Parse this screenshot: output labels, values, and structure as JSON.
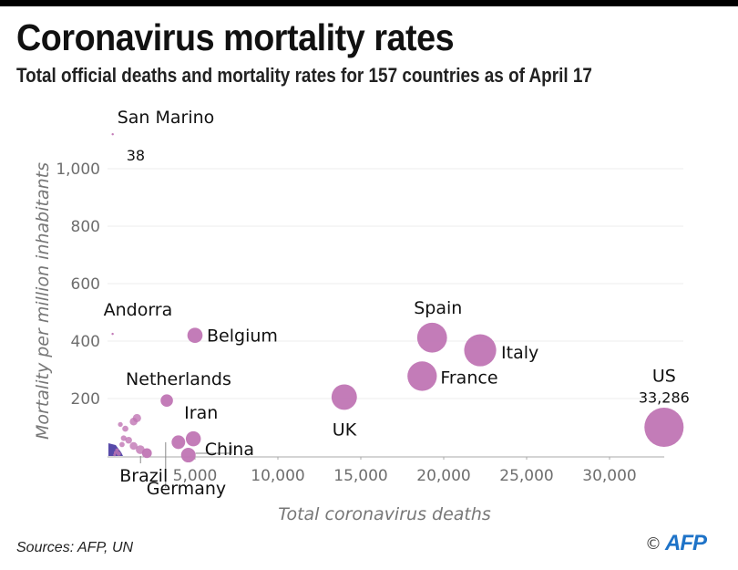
{
  "header": {
    "title": "Coronavirus mortality rates",
    "subtitle": "Total official deaths and mortality rates for 157 countries as of April 17"
  },
  "footer": {
    "source": "Sources: AFP, UN",
    "copyright_symbol": "©",
    "logo_text": "AFP",
    "logo_color": "#1e73c8"
  },
  "chart_data": {
    "type": "scatter",
    "title": "Coronavirus mortality rates",
    "subtitle": "Total official deaths and mortality rates for 157 countries as of April 17",
    "xlabel": "Total coronavirus deaths",
    "ylabel": "Mortality per million inhabitants",
    "xlim": [
      0,
      34000
    ],
    "ylim": [
      0,
      1150
    ],
    "x_ticks": [
      5000,
      10000,
      15000,
      20000,
      25000,
      30000
    ],
    "x_tick_labels": [
      "5,000",
      "10,000",
      "15,000",
      "20,000",
      "25,000",
      "30,000"
    ],
    "y_ticks": [
      200,
      400,
      600,
      800,
      1000
    ],
    "y_tick_labels": [
      "200",
      "400",
      "600",
      "800",
      "1,000"
    ],
    "grid": "horizontal",
    "bubble_color": "#c075b4",
    "low_color": "#3a2a9a",
    "labeled_points": [
      {
        "name": "San Marino",
        "deaths": 38,
        "rate": 1120,
        "annotation": "38"
      },
      {
        "name": "Andorra",
        "deaths": 33,
        "rate": 425
      },
      {
        "name": "Belgium",
        "deaths": 5000,
        "rate": 420
      },
      {
        "name": "Netherlands",
        "deaths": 3300,
        "rate": 193
      },
      {
        "name": "Iran",
        "deaths": 4900,
        "rate": 60
      },
      {
        "name": "China",
        "deaths": 4600,
        "rate": 3
      },
      {
        "name": "Germany",
        "deaths": 4000,
        "rate": 48
      },
      {
        "name": "Brazil",
        "deaths": 2100,
        "rate": 10
      },
      {
        "name": "UK",
        "deaths": 14000,
        "rate": 205
      },
      {
        "name": "France",
        "deaths": 18700,
        "rate": 278
      },
      {
        "name": "Spain",
        "deaths": 19300,
        "rate": 412
      },
      {
        "name": "Italy",
        "deaths": 22200,
        "rate": 368
      },
      {
        "name": "US",
        "deaths": 33286,
        "rate": 100,
        "annotation": "33,286"
      }
    ],
    "unlabeled_points": [
      {
        "deaths": 500,
        "rate": 110
      },
      {
        "deaths": 800,
        "rate": 95
      },
      {
        "deaths": 1300,
        "rate": 120
      },
      {
        "deaths": 1500,
        "rate": 132
      },
      {
        "deaths": 700,
        "rate": 62
      },
      {
        "deaths": 1000,
        "rate": 55
      },
      {
        "deaths": 1300,
        "rate": 35
      },
      {
        "deaths": 1700,
        "rate": 22
      },
      {
        "deaths": 600,
        "rate": 40
      },
      {
        "deaths": 300,
        "rate": 20
      },
      {
        "deaths": 200,
        "rate": 12
      },
      {
        "deaths": 400,
        "rate": 8
      },
      {
        "deaths": 150,
        "rate": 4
      }
    ]
  }
}
